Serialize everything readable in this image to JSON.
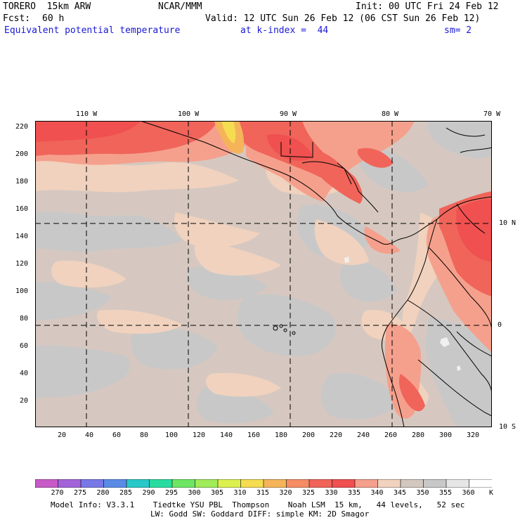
{
  "header": {
    "model": "TORERO  15km ARW",
    "institution": "NCAR/MMM",
    "init": "Init: 00 UTC Fri 24 Feb 12",
    "fcst_label": "Fcst:",
    "fcst_value": "60 h",
    "valid": "Valid: 12 UTC Sun 26 Feb 12 (06 CST Sun 26 Feb 12)",
    "field": "Equivalent potential temperature",
    "level": "at k-index =  44",
    "smoothing": "sm= 2"
  },
  "map": {
    "top_lon_labels": [
      "110 W",
      "100 W",
      "90 W",
      "80 W",
      "70 W"
    ],
    "right_lat_labels": [
      "10 N",
      "0",
      "10 S"
    ],
    "left_ticks": [
      "220",
      "200",
      "180",
      "160",
      "140",
      "120",
      "100",
      "80",
      "60",
      "40",
      "20"
    ],
    "bottom_ticks": [
      "20",
      "40",
      "60",
      "80",
      "100",
      "120",
      "140",
      "160",
      "180",
      "200",
      "220",
      "240",
      "260",
      "280",
      "300",
      "320"
    ]
  },
  "colorbar": {
    "levels": [
      "270",
      "275",
      "280",
      "285",
      "290",
      "295",
      "300",
      "305",
      "310",
      "315",
      "320",
      "325",
      "330",
      "335",
      "340",
      "345",
      "350",
      "355",
      "360"
    ],
    "unit": "K",
    "colors": [
      "#c85ac8",
      "#a264d8",
      "#7878e6",
      "#5a8ce6",
      "#28c8c8",
      "#28dca0",
      "#6ee664",
      "#a0ec5a",
      "#dcf050",
      "#f5dc50",
      "#f5b45a",
      "#f58c64",
      "#f0645a",
      "#f05050",
      "#f5a08c",
      "#f0d2be",
      "#d2c8c0",
      "#c8c8c8",
      "#e6e6e6",
      "#ffffff"
    ]
  },
  "footer": {
    "line1": "Model Info: V3.3.1    Tiedtke YSU PBL  Thompson    Noah LSM  15 km,   44 levels,   52 sec",
    "line2": "LW: Godd SW: Goddard DIFF: simple KM: 2D Smagor"
  }
}
